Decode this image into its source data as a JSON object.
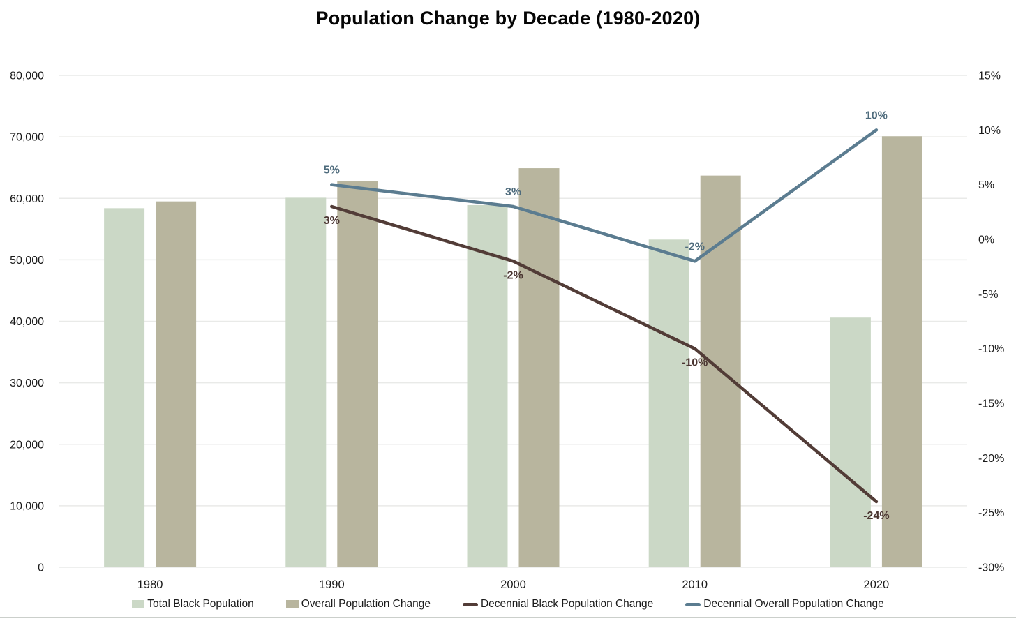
{
  "title": "Population Change by Decade (1980-2020)",
  "chart_data": {
    "type": "bar+line combo",
    "categories": [
      "1980",
      "1990",
      "2000",
      "2010",
      "2020"
    ],
    "bar_series": [
      {
        "name": "Total Black Population",
        "color": "#cbd8c6",
        "axis": "left",
        "values": [
          58400,
          60100,
          58900,
          53300,
          40600
        ]
      },
      {
        "name": "Overall Population Change",
        "color": "#b8b59e",
        "axis": "left",
        "values": [
          59500,
          62800,
          64900,
          63700,
          70100
        ]
      }
    ],
    "line_series": [
      {
        "name": "Decennial Black Population Change",
        "color": "#523c37",
        "label_color": "#4a3531",
        "axis": "right",
        "label_side": "below",
        "x": [
          "1990",
          "2000",
          "2010",
          "2020"
        ],
        "values": [
          3,
          -2,
          -10,
          -24
        ],
        "labels": [
          "3%",
          "-2%",
          "-10%",
          "-24%"
        ]
      },
      {
        "name": "Decennial Overall Population Change",
        "color": "#5b7c90",
        "label_color": "#4e6b7c",
        "axis": "right",
        "label_side": "above",
        "x": [
          "1990",
          "2000",
          "2010",
          "2020"
        ],
        "values": [
          5,
          3,
          -2,
          10
        ],
        "labels": [
          "5%",
          "3%",
          "-2%",
          "10%"
        ]
      }
    ],
    "left_axis": {
      "min": 0,
      "max": 80000,
      "step": 10000,
      "tick_labels": [
        "0",
        "10,000",
        "20,000",
        "30,000",
        "40,000",
        "50,000",
        "60,000",
        "70,000",
        "80,000"
      ]
    },
    "right_axis": {
      "min": -30,
      "max": 15,
      "step": 5,
      "tick_labels": [
        "-30%",
        "-25%",
        "-20%",
        "-15%",
        "-10%",
        "-5%",
        "0%",
        "5%",
        "10%",
        "15%"
      ]
    },
    "grid": "horizontal gridlines on left-axis ticks",
    "legend_position": "bottom",
    "legend": [
      {
        "label": "Total Black Population",
        "swatch": "bar",
        "color": "#cbd8c6"
      },
      {
        "label": "Overall Population Change",
        "swatch": "bar",
        "color": "#b8b59e"
      },
      {
        "label": "Decennial Black Population Change",
        "swatch": "line",
        "color": "#523c37"
      },
      {
        "label": "Decennial Overall Population Change",
        "swatch": "line",
        "color": "#5b7c90"
      }
    ],
    "colors": {
      "gridline": "#e9eae8",
      "tick_text": "#1a1a1a",
      "title_text": "#050505",
      "bottom_rule": "#cbcfcb"
    }
  }
}
